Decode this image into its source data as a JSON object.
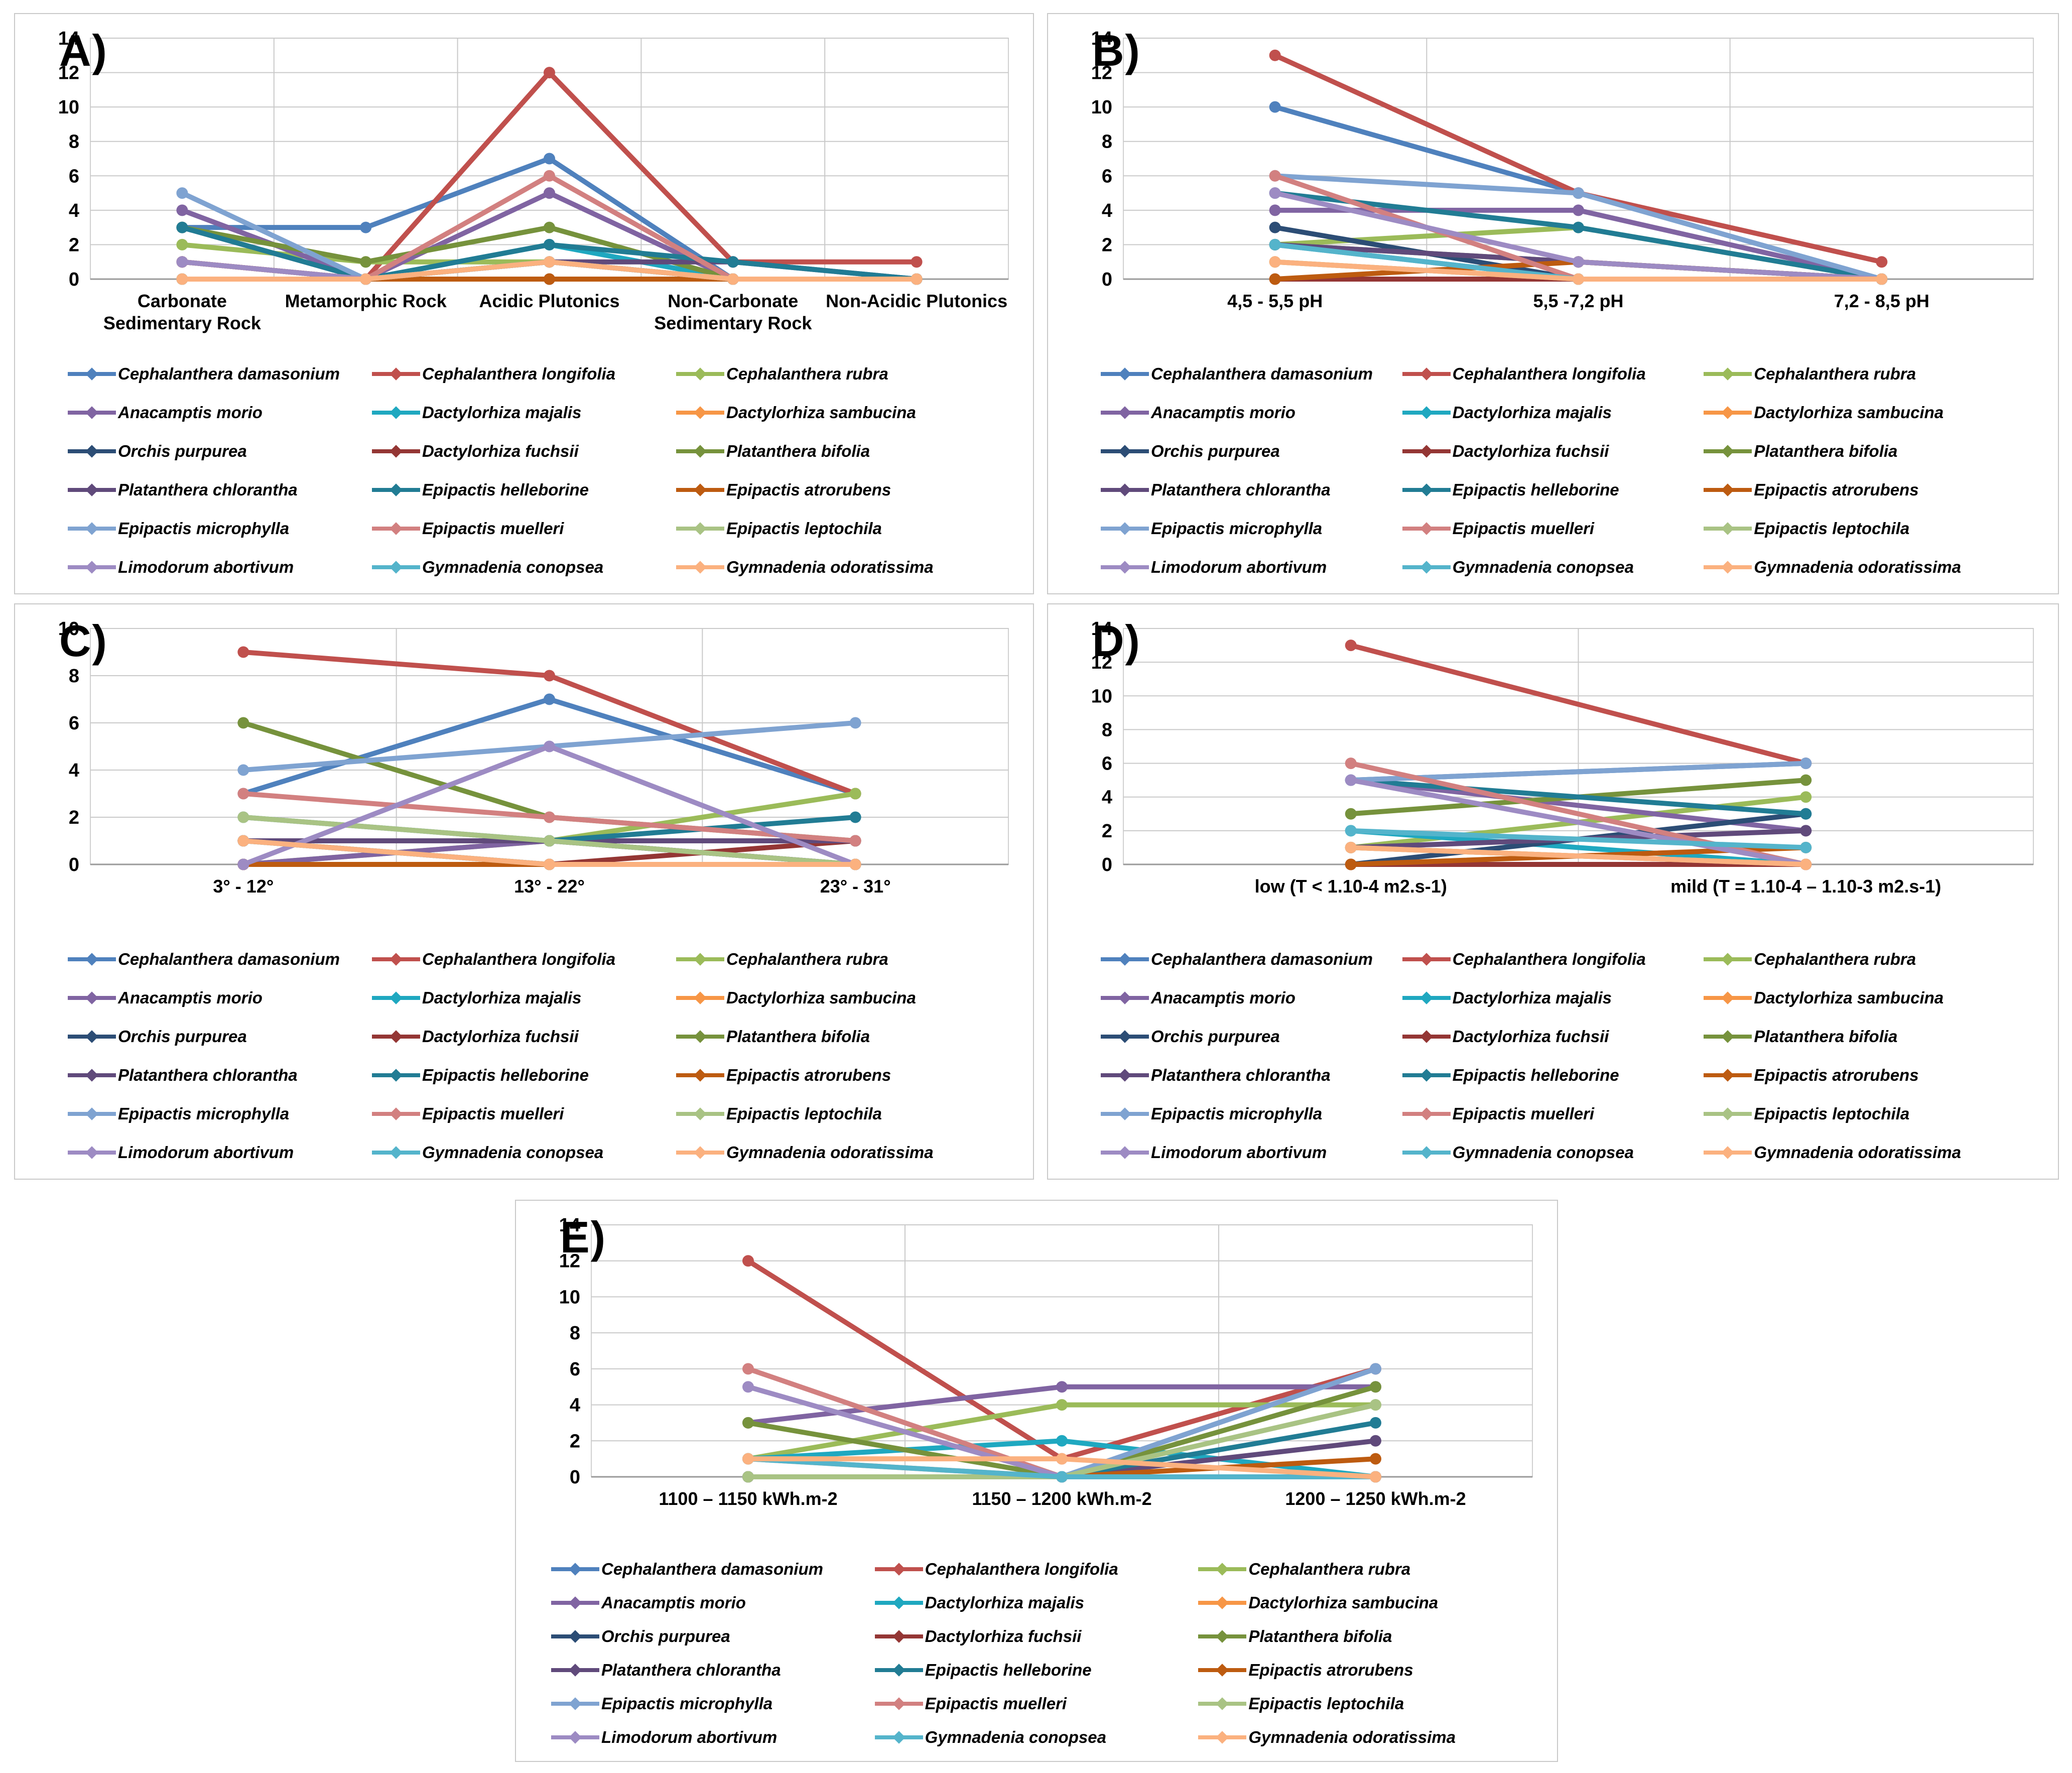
{
  "figure": {
    "description_labels": [
      "A)",
      "B)",
      "C)",
      "D)",
      "E)"
    ]
  },
  "species": [
    {
      "name": "Cephalanthera damasonium",
      "color": "#4F81BD"
    },
    {
      "name": "Cephalanthera longifolia",
      "color": "#C0504D"
    },
    {
      "name": "Cephalanthera rubra",
      "color": "#9BBB59"
    },
    {
      "name": "Anacamptis morio",
      "color": "#8064A2"
    },
    {
      "name": "Dactylorhiza majalis",
      "color": "#1FA8C0"
    },
    {
      "name": "Dactylorhiza sambucina",
      "color": "#F79646"
    },
    {
      "name": "Orchis purpurea",
      "color": "#2C4D75"
    },
    {
      "name": "Dactylorhiza fuchsii",
      "color": "#943634"
    },
    {
      "name": "Platanthera bifolia",
      "color": "#76923C"
    },
    {
      "name": "Platanthera chlorantha",
      "color": "#604A7B"
    },
    {
      "name": "Epipactis helleborine",
      "color": "#217C94"
    },
    {
      "name": "Epipactis atrorubens",
      "color": "#BD5B10"
    },
    {
      "name": "Epipactis microphylla",
      "color": "#7FA3D1"
    },
    {
      "name": "Epipactis muelleri",
      "color": "#D28080"
    },
    {
      "name": "Epipactis leptochila",
      "color": "#A9C384"
    },
    {
      "name": "Limodorum abortivum",
      "color": "#9D8BC3"
    },
    {
      "name": "Gymnadenia conopsea",
      "color": "#54B4CB"
    },
    {
      "name": "Gymnadenia odoratissima",
      "color": "#FBB17F"
    }
  ],
  "chart_data": [
    {
      "id": "A",
      "label": "A)",
      "type": "line",
      "grid": true,
      "legend_position": "bottom",
      "ylim": [
        0,
        14
      ],
      "ytick_step": 2,
      "categories": [
        "Carbonate\nSedimentary Rock",
        "Metamorphic Rock",
        "Acidic Plutonics",
        "Non-Carbonate\nSedimentary Rock",
        "Non-Acidic Plutonics"
      ],
      "series": [
        {
          "name": "Cephalanthera damasonium",
          "values": [
            3,
            3,
            7,
            0,
            0
          ]
        },
        {
          "name": "Cephalanthera longifolia",
          "values": [
            1,
            0,
            12,
            1,
            1
          ]
        },
        {
          "name": "Cephalanthera rubra",
          "values": [
            2,
            1,
            1,
            0,
            0
          ]
        },
        {
          "name": "Anacamptis morio",
          "values": [
            4,
            0,
            5,
            0,
            0
          ]
        },
        {
          "name": "Dactylorhiza majalis",
          "values": [
            0,
            0,
            2,
            0,
            0
          ]
        },
        {
          "name": "Dactylorhiza sambucina",
          "values": [
            0,
            0,
            1,
            0,
            0
          ]
        },
        {
          "name": "Orchis purpurea",
          "values": [
            3,
            0,
            0,
            0,
            0
          ]
        },
        {
          "name": "Dactylorhiza fuchsii",
          "values": [
            0,
            0,
            0,
            0,
            0
          ]
        },
        {
          "name": "Platanthera bifolia",
          "values": [
            3,
            1,
            3,
            0,
            0
          ]
        },
        {
          "name": "Platanthera chlorantha",
          "values": [
            1,
            0,
            1,
            1,
            0
          ]
        },
        {
          "name": "Epipactis helleborine",
          "values": [
            3,
            0,
            2,
            1,
            0
          ]
        },
        {
          "name": "Epipactis atrorubens",
          "values": [
            1,
            0,
            0,
            0,
            0
          ]
        },
        {
          "name": "Epipactis microphylla",
          "values": [
            5,
            0,
            1,
            0,
            0
          ]
        },
        {
          "name": "Epipactis muelleri",
          "values": [
            1,
            0,
            6,
            0,
            0
          ]
        },
        {
          "name": "Epipactis leptochila",
          "values": [
            0,
            0,
            1,
            0,
            0
          ]
        },
        {
          "name": "Limodorum abortivum",
          "values": [
            1,
            0,
            1,
            0,
            0
          ]
        },
        {
          "name": "Gymnadenia conopsea",
          "values": [
            0,
            0,
            1,
            0,
            0
          ]
        },
        {
          "name": "Gymnadenia odoratissima",
          "values": [
            0,
            0,
            1,
            0,
            0
          ]
        }
      ]
    },
    {
      "id": "B",
      "label": "B)",
      "type": "line",
      "grid": true,
      "legend_position": "bottom",
      "ylim": [
        0,
        14
      ],
      "ytick_step": 2,
      "categories": [
        "4,5 - 5,5 pH",
        "5,5 -7,2 pH",
        "7,2 - 8,5 pH"
      ],
      "series": [
        {
          "name": "Cephalanthera damasonium",
          "values": [
            10,
            5,
            0
          ]
        },
        {
          "name": "Cephalanthera longifolia",
          "values": [
            13,
            5,
            1
          ]
        },
        {
          "name": "Cephalanthera rubra",
          "values": [
            2,
            3,
            0
          ]
        },
        {
          "name": "Anacamptis morio",
          "values": [
            4,
            4,
            0
          ]
        },
        {
          "name": "Dactylorhiza majalis",
          "values": [
            2,
            0,
            0
          ]
        },
        {
          "name": "Dactylorhiza sambucina",
          "values": [
            1,
            0,
            0
          ]
        },
        {
          "name": "Orchis purpurea",
          "values": [
            3,
            0,
            0
          ]
        },
        {
          "name": "Dactylorhiza fuchsii",
          "values": [
            0,
            0,
            0
          ]
        },
        {
          "name": "Platanthera bifolia",
          "values": [
            2,
            1,
            0
          ]
        },
        {
          "name": "Platanthera chlorantha",
          "values": [
            2,
            1,
            0
          ]
        },
        {
          "name": "Epipactis helleborine",
          "values": [
            5,
            3,
            0
          ]
        },
        {
          "name": "Epipactis atrorubens",
          "values": [
            0,
            1,
            0
          ]
        },
        {
          "name": "Epipactis microphylla",
          "values": [
            6,
            5,
            0
          ]
        },
        {
          "name": "Epipactis muelleri",
          "values": [
            6,
            0,
            0
          ]
        },
        {
          "name": "Epipactis leptochila",
          "values": [
            1,
            0,
            0
          ]
        },
        {
          "name": "Limodorum abortivum",
          "values": [
            5,
            1,
            0
          ]
        },
        {
          "name": "Gymnadenia conopsea",
          "values": [
            2,
            0,
            0
          ]
        },
        {
          "name": "Gymnadenia odoratissima",
          "values": [
            1,
            0,
            0
          ]
        }
      ]
    },
    {
      "id": "C",
      "label": "C)",
      "type": "line",
      "grid": true,
      "legend_position": "bottom",
      "ylim": [
        0,
        10
      ],
      "ytick_step": 2,
      "categories": [
        "3° - 12°",
        "13° - 22°",
        "23° - 31°"
      ],
      "series": [
        {
          "name": "Cephalanthera damasonium",
          "values": [
            3,
            7,
            3
          ]
        },
        {
          "name": "Cephalanthera longifolia",
          "values": [
            9,
            8,
            3
          ]
        },
        {
          "name": "Cephalanthera rubra",
          "values": [
            0,
            1,
            3
          ]
        },
        {
          "name": "Anacamptis morio",
          "values": [
            0,
            1,
            0
          ]
        },
        {
          "name": "Dactylorhiza majalis",
          "values": [
            1,
            0,
            0
          ]
        },
        {
          "name": "Dactylorhiza sambucina",
          "values": [
            1,
            0,
            0
          ]
        },
        {
          "name": "Orchis purpurea",
          "values": [
            1,
            1,
            0
          ]
        },
        {
          "name": "Dactylorhiza fuchsii",
          "values": [
            0,
            0,
            1
          ]
        },
        {
          "name": "Platanthera bifolia",
          "values": [
            6,
            2,
            1
          ]
        },
        {
          "name": "Platanthera chlorantha",
          "values": [
            1,
            1,
            1
          ]
        },
        {
          "name": "Epipactis helleborine",
          "values": [
            2,
            1,
            2
          ]
        },
        {
          "name": "Epipactis atrorubens",
          "values": [
            0,
            0,
            0
          ]
        },
        {
          "name": "Epipactis microphylla",
          "values": [
            4,
            5,
            6
          ]
        },
        {
          "name": "Epipactis muelleri",
          "values": [
            3,
            2,
            1
          ]
        },
        {
          "name": "Epipactis leptochila",
          "values": [
            2,
            1,
            0
          ]
        },
        {
          "name": "Limodorum abortivum",
          "values": [
            0,
            5,
            0
          ]
        },
        {
          "name": "Gymnadenia conopsea",
          "values": [
            1,
            0,
            0
          ]
        },
        {
          "name": "Gymnadenia odoratissima",
          "values": [
            1,
            0,
            0
          ]
        }
      ]
    },
    {
      "id": "D",
      "label": "D)",
      "type": "line",
      "grid": true,
      "legend_position": "bottom",
      "ylim": [
        0,
        14
      ],
      "ytick_step": 2,
      "categories": [
        "low (T < 1.10-4 m2.s-1)",
        "mild (T = 1.10-4 – 1.10-3 m2.s-1)"
      ],
      "series": [
        {
          "name": "Cephalanthera damasonium",
          "values": [
            5,
            6
          ]
        },
        {
          "name": "Cephalanthera longifolia",
          "values": [
            13,
            6
          ]
        },
        {
          "name": "Cephalanthera rubra",
          "values": [
            1,
            4
          ]
        },
        {
          "name": "Anacamptis morio",
          "values": [
            5,
            2
          ]
        },
        {
          "name": "Dactylorhiza majalis",
          "values": [
            2,
            0
          ]
        },
        {
          "name": "Dactylorhiza sambucina",
          "values": [
            1,
            0
          ]
        },
        {
          "name": "Orchis purpurea",
          "values": [
            0,
            3
          ]
        },
        {
          "name": "Dactylorhiza fuchsii",
          "values": [
            0,
            0
          ]
        },
        {
          "name": "Platanthera bifolia",
          "values": [
            3,
            5
          ]
        },
        {
          "name": "Platanthera chlorantha",
          "values": [
            1,
            2
          ]
        },
        {
          "name": "Epipactis helleborine",
          "values": [
            5,
            3
          ]
        },
        {
          "name": "Epipactis atrorubens",
          "values": [
            0,
            1
          ]
        },
        {
          "name": "Epipactis microphylla",
          "values": [
            5,
            6
          ]
        },
        {
          "name": "Epipactis muelleri",
          "values": [
            6,
            0
          ]
        },
        {
          "name": "Epipactis leptochila",
          "values": [
            1,
            0
          ]
        },
        {
          "name": "Limodorum abortivum",
          "values": [
            5,
            0
          ]
        },
        {
          "name": "Gymnadenia conopsea",
          "values": [
            2,
            1
          ]
        },
        {
          "name": "Gymnadenia odoratissima",
          "values": [
            1,
            0
          ]
        }
      ]
    },
    {
      "id": "E",
      "label": "E)",
      "type": "line",
      "grid": true,
      "legend_position": "bottom",
      "ylim": [
        0,
        14
      ],
      "ytick_step": 2,
      "categories": [
        "1100 – 1150 kWh.m-2",
        "1150 – 1200 kWh.m-2",
        "1200 – 1250 kWh.m-2"
      ],
      "series": [
        {
          "name": "Cephalanthera damasonium",
          "values": [
            0,
            0,
            6
          ]
        },
        {
          "name": "Cephalanthera longifolia",
          "values": [
            12,
            1,
            6
          ]
        },
        {
          "name": "Cephalanthera rubra",
          "values": [
            1,
            4,
            4
          ]
        },
        {
          "name": "Anacamptis morio",
          "values": [
            3,
            5,
            5
          ]
        },
        {
          "name": "Dactylorhiza majalis",
          "values": [
            1,
            2,
            0
          ]
        },
        {
          "name": "Dactylorhiza sambucina",
          "values": [
            1,
            0,
            0
          ]
        },
        {
          "name": "Orchis purpurea",
          "values": [
            0,
            0,
            0
          ]
        },
        {
          "name": "Dactylorhiza fuchsii",
          "values": [
            0,
            0,
            0
          ]
        },
        {
          "name": "Platanthera bifolia",
          "values": [
            3,
            0,
            5
          ]
        },
        {
          "name": "Platanthera chlorantha",
          "values": [
            0,
            0,
            2
          ]
        },
        {
          "name": "Epipactis helleborine",
          "values": [
            0,
            0,
            3
          ]
        },
        {
          "name": "Epipactis atrorubens",
          "values": [
            0,
            0,
            1
          ]
        },
        {
          "name": "Epipactis microphylla",
          "values": [
            0,
            0,
            6
          ]
        },
        {
          "name": "Epipactis muelleri",
          "values": [
            6,
            0,
            0
          ]
        },
        {
          "name": "Epipactis leptochila",
          "values": [
            0,
            0,
            4
          ]
        },
        {
          "name": "Limodorum abortivum",
          "values": [
            5,
            0,
            0
          ]
        },
        {
          "name": "Gymnadenia conopsea",
          "values": [
            1,
            0,
            0
          ]
        },
        {
          "name": "Gymnadenia odoratissima",
          "values": [
            1,
            1,
            0
          ]
        }
      ]
    }
  ]
}
